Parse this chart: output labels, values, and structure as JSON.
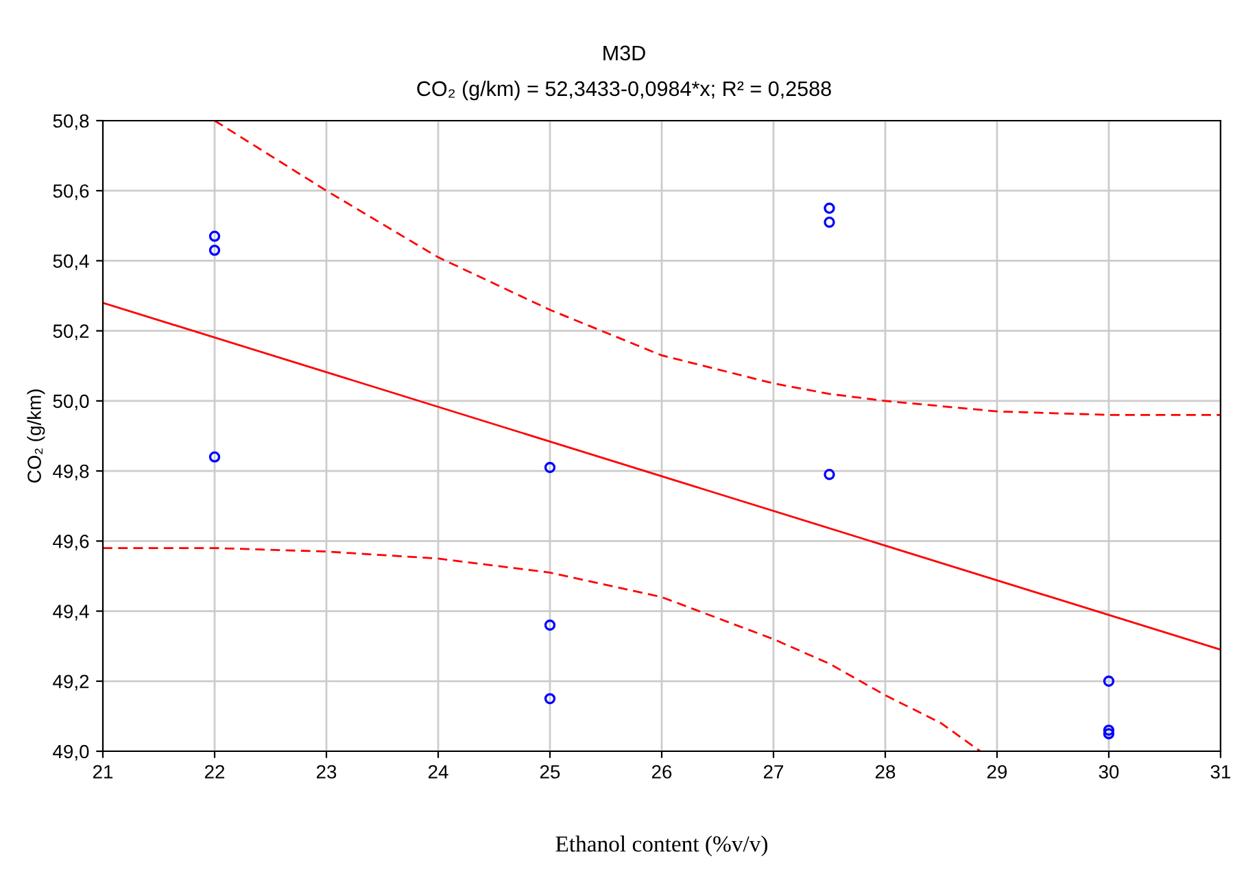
{
  "chart_data": {
    "type": "scatter",
    "title": "M3D",
    "subtitle": "CO₂ (g/km) = 52,3433-0,0984*x; R² = 0,2588",
    "xlabel": "Ethanol content (%v/v)",
    "ylabel": "CO₂ (g/km)",
    "series": [
      {
        "color": "#0000ff",
        "marker": "circle",
        "x": [
          22,
          22,
          22,
          25,
          25,
          25,
          27.5,
          27.5,
          27.5,
          30,
          30,
          30
        ],
        "values": [
          50.47,
          50.43,
          49.84,
          49.81,
          49.36,
          49.15,
          50.55,
          50.51,
          49.79,
          49.2,
          49.06,
          49.05
        ]
      },
      {
        "type": "line",
        "color": "#ff0000",
        "line_style": "solid",
        "x": [
          21,
          31
        ],
        "values": [
          50.28,
          49.29
        ]
      },
      {
        "type": "line",
        "color": "#ff0000",
        "line_style": "dashed",
        "x": [
          22,
          23,
          24,
          25,
          26,
          27,
          27.5,
          28,
          29,
          30,
          31
        ],
        "values": [
          50.8,
          50.6,
          50.41,
          50.26,
          50.13,
          50.05,
          50.02,
          50.0,
          49.97,
          49.96,
          49.96
        ]
      },
      {
        "type": "line",
        "color": "#ff0000",
        "line_style": "dashed",
        "x": [
          21,
          22,
          23,
          24,
          25,
          26,
          27,
          27.5,
          28,
          28.5,
          28.85
        ],
        "values": [
          49.58,
          49.58,
          49.57,
          49.55,
          49.51,
          49.44,
          49.32,
          49.25,
          49.16,
          49.08,
          49.0
        ]
      }
    ],
    "xlim": [
      21,
      31
    ],
    "xticks": [
      21,
      22,
      23,
      24,
      25,
      26,
      27,
      28,
      29,
      30,
      31
    ],
    "ylim": [
      49.0,
      50.8
    ],
    "yticks": [
      {
        "value": 49.0,
        "label": "49,0"
      },
      {
        "value": 49.2,
        "label": "49,2"
      },
      {
        "value": 49.4,
        "label": "49,4"
      },
      {
        "value": 49.6,
        "label": "49,6"
      },
      {
        "value": 49.8,
        "label": "49,8"
      },
      {
        "value": 50.0,
        "label": "50,0"
      },
      {
        "value": 50.2,
        "label": "50,2"
      },
      {
        "value": 50.4,
        "label": "50,4"
      },
      {
        "value": 50.6,
        "label": "50,6"
      },
      {
        "value": 50.8,
        "label": "50,8"
      }
    ],
    "grid": true
  }
}
